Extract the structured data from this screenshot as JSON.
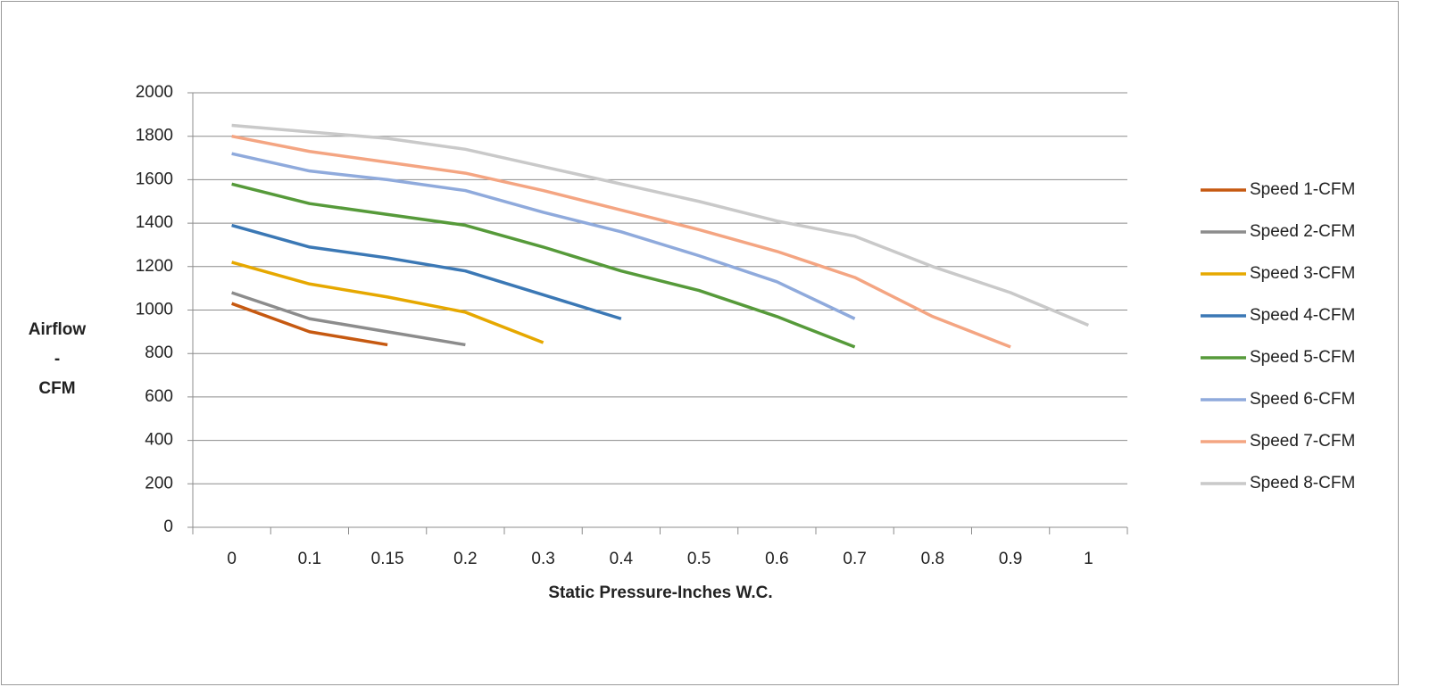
{
  "chart_data": {
    "type": "line",
    "x_label": "Static Pressure-Inches W.C.",
    "y_label": [
      "Airflow",
      "-",
      "CFM"
    ],
    "categories": [
      "0",
      "0.1",
      "0.15",
      "0.2",
      "0.3",
      "0.4",
      "0.5",
      "0.6",
      "0.7",
      "0.8",
      "0.9",
      "1"
    ],
    "series": [
      {
        "name": "Speed 1-CFM",
        "color": "#c65911",
        "values": [
          1030,
          900,
          840,
          null,
          null,
          null,
          null,
          null,
          null,
          null,
          null,
          null
        ]
      },
      {
        "name": "Speed 2-CFM",
        "color": "#8c8c8c",
        "values": [
          1080,
          960,
          900,
          840,
          null,
          null,
          null,
          null,
          null,
          null,
          null,
          null
        ]
      },
      {
        "name": "Speed 3-CFM",
        "color": "#e6a800",
        "values": [
          1220,
          1120,
          1060,
          990,
          850,
          null,
          null,
          null,
          null,
          null,
          null,
          null
        ]
      },
      {
        "name": "Speed 4-CFM",
        "color": "#3b78b5",
        "values": [
          1390,
          1290,
          1240,
          1180,
          1070,
          960,
          null,
          null,
          null,
          null,
          null,
          null
        ]
      },
      {
        "name": "Speed 5-CFM",
        "color": "#569a3a",
        "values": [
          1580,
          1490,
          1440,
          1390,
          1290,
          1180,
          1090,
          970,
          830,
          null,
          null,
          null
        ]
      },
      {
        "name": "Speed 6-CFM",
        "color": "#8faadc",
        "values": [
          1720,
          1640,
          1600,
          1550,
          1450,
          1360,
          1250,
          1130,
          960,
          null,
          null,
          null
        ]
      },
      {
        "name": "Speed 7-CFM",
        "color": "#f4a582",
        "values": [
          1800,
          1730,
          1680,
          1630,
          1550,
          1460,
          1370,
          1270,
          1150,
          970,
          830,
          null
        ]
      },
      {
        "name": "Speed 8-CFM",
        "color": "#c9c9c9",
        "values": [
          1850,
          1820,
          1790,
          1740,
          1660,
          1580,
          1500,
          1410,
          1340,
          1200,
          1080,
          930
        ]
      }
    ],
    "ylim": [
      0,
      2000
    ],
    "yticks": [
      0,
      200,
      400,
      600,
      800,
      1000,
      1200,
      1400,
      1600,
      1800,
      2000
    ],
    "grid": true,
    "legend": "right"
  }
}
